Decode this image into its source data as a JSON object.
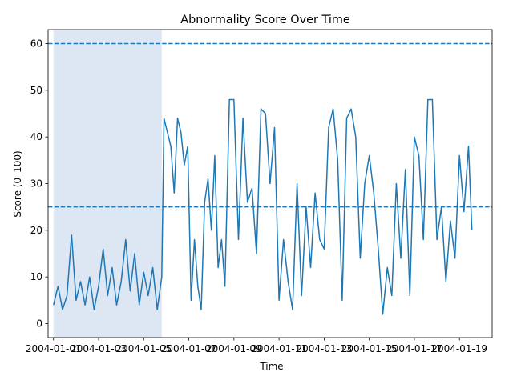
{
  "chart_data": {
    "type": "line",
    "title": "Abnormality Score Over Time",
    "xlabel": "Time",
    "ylabel": "Score (0–100)",
    "ylim": [
      -3,
      63
    ],
    "xlim_days": [
      -0.24,
      19.45
    ],
    "x_ticks": [
      {
        "day": 0,
        "label": "2004-01-01"
      },
      {
        "day": 2,
        "label": "2004-01-03"
      },
      {
        "day": 4,
        "label": "2004-01-05"
      },
      {
        "day": 6,
        "label": "2004-01-07"
      },
      {
        "day": 8,
        "label": "2004-01-09"
      },
      {
        "day": 10,
        "label": "2004-01-11"
      },
      {
        "day": 12,
        "label": "2004-01-13"
      },
      {
        "day": 14,
        "label": "2004-01-15"
      },
      {
        "day": 16,
        "label": "2004-01-17"
      },
      {
        "day": 18,
        "label": "2004-01-19"
      }
    ],
    "y_ticks": [
      0,
      10,
      20,
      30,
      40,
      50,
      60
    ],
    "thresholds": [
      25,
      60
    ],
    "shaded_region_days": [
      0,
      4.8
    ],
    "colors": {
      "line": "#1f77b4",
      "threshold": "#1f77b4",
      "shade": "#dce7f3"
    },
    "series": [
      {
        "x": [
          0,
          0.2,
          0.4,
          0.6,
          0.8,
          1.0,
          1.2,
          1.4,
          1.6,
          1.8,
          2.0,
          2.2,
          2.4,
          2.6,
          2.8,
          3.0,
          3.2,
          3.4,
          3.6,
          3.8,
          4.0,
          4.2,
          4.4,
          4.6,
          4.8,
          4.9,
          5.0,
          5.2,
          5.35,
          5.5,
          5.65,
          5.8,
          5.95,
          6.1,
          6.25,
          6.4,
          6.55,
          6.7,
          6.85,
          7.0,
          7.15,
          7.3,
          7.45,
          7.6,
          7.8,
          8.0,
          8.2,
          8.4,
          8.6,
          8.8,
          9.0,
          9.2,
          9.4,
          9.6,
          9.8,
          10.0,
          10.2,
          10.4,
          10.6,
          10.8,
          11.0,
          11.2,
          11.4,
          11.6,
          11.8,
          12.0,
          12.2,
          12.4,
          12.6,
          12.8,
          13.0,
          13.2,
          13.4,
          13.6,
          13.8,
          14.0,
          14.2,
          14.4,
          14.6,
          14.8,
          15.0,
          15.2,
          15.4,
          15.6,
          15.8,
          16.0,
          16.2,
          16.4,
          16.6,
          16.8,
          17.0,
          17.2,
          17.4,
          17.6,
          17.8,
          18.0,
          18.2,
          18.4,
          18.55
        ],
        "y": [
          4,
          8,
          3,
          6,
          19,
          5,
          9,
          4,
          10,
          3,
          8,
          16,
          6,
          12,
          4,
          9,
          18,
          7,
          15,
          4,
          11,
          6,
          12,
          3,
          10,
          44,
          42,
          38,
          28,
          44,
          41,
          34,
          38,
          5,
          18,
          8,
          3,
          26,
          31,
          20,
          36,
          12,
          18,
          8,
          48,
          48,
          18,
          44,
          26,
          29,
          15,
          46,
          45,
          30,
          42,
          5,
          18,
          9,
          3,
          30,
          6,
          25,
          12,
          28,
          18,
          16,
          42,
          46,
          35,
          5,
          44,
          46,
          40,
          14,
          30,
          36,
          28,
          16,
          2,
          12,
          6,
          30,
          14,
          33,
          6,
          40,
          36,
          18,
          48,
          48,
          18,
          25,
          9,
          22,
          14,
          36,
          24,
          38,
          20
        ]
      }
    ]
  }
}
